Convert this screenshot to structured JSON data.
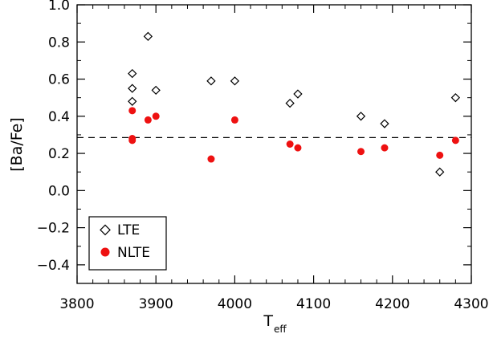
{
  "chart_data": {
    "type": "scatter",
    "xlabel": "T",
    "xlabel_sub": "eff",
    "ylabel": "[Ba/Fe]",
    "xlim": [
      3800,
      4300
    ],
    "ylim": [
      -0.5,
      1.0
    ],
    "x_ticks": [
      3800,
      3900,
      4000,
      4100,
      4200,
      4300
    ],
    "y_ticks": [
      -0.4,
      -0.2,
      0.0,
      0.2,
      0.4,
      0.6,
      0.8,
      1.0
    ],
    "x_tick_labels": [
      "3800",
      "3900",
      "4000",
      "4100",
      "4200",
      "4300"
    ],
    "y_tick_labels": [
      "−0.4",
      "−0.2",
      "0.0",
      "0.2",
      "0.4",
      "0.6",
      "0.8",
      "1.0"
    ],
    "grid": false,
    "legend_position": "bottom-left",
    "reference_line": {
      "y": 0.285,
      "style": "dashed"
    },
    "series": [
      {
        "name": "LTE",
        "marker": "open-diamond",
        "color": "#000000",
        "points": [
          [
            3870,
            0.63
          ],
          [
            3870,
            0.55
          ],
          [
            3870,
            0.48
          ],
          [
            3890,
            0.83
          ],
          [
            3900,
            0.54
          ],
          [
            3970,
            0.59
          ],
          [
            4000,
            0.59
          ],
          [
            4070,
            0.47
          ],
          [
            4080,
            0.52
          ],
          [
            4160,
            0.4
          ],
          [
            4190,
            0.36
          ],
          [
            4260,
            0.1
          ],
          [
            4280,
            0.5
          ]
        ]
      },
      {
        "name": "NLTE",
        "marker": "filled-circle",
        "color": "#ee1111",
        "points": [
          [
            3870,
            0.43
          ],
          [
            3870,
            0.28
          ],
          [
            3870,
            0.27
          ],
          [
            3890,
            0.38
          ],
          [
            3900,
            0.4
          ],
          [
            3970,
            0.17
          ],
          [
            4000,
            0.38
          ],
          [
            4070,
            0.25
          ],
          [
            4080,
            0.23
          ],
          [
            4160,
            0.21
          ],
          [
            4190,
            0.23
          ],
          [
            4260,
            0.19
          ],
          [
            4280,
            0.27
          ]
        ]
      }
    ]
  }
}
